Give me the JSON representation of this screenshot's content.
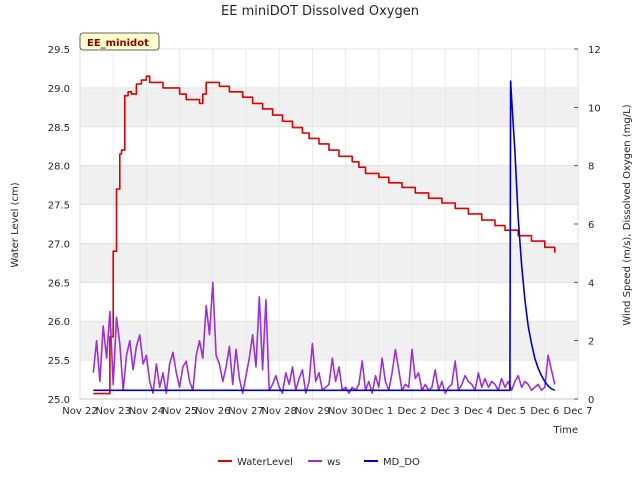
{
  "chart_data": {
    "type": "line",
    "title": "EE miniDOT Dissolved Oxygen",
    "badge": "EE_minidot",
    "xlabel": "Time",
    "ylabel_left": "Water Level (cm)",
    "ylabel_right": "Wind Speed (m/s), Dissolved Oxygen (mg/L)",
    "xlim": [
      0,
      15
    ],
    "ylim_left": [
      25.0,
      29.5
    ],
    "ylim_right": [
      0,
      12
    ],
    "x_ticks": [
      {
        "x": 0,
        "label": "Nov 22"
      },
      {
        "x": 1,
        "label": "Nov 23"
      },
      {
        "x": 2,
        "label": "Nov 24"
      },
      {
        "x": 3,
        "label": "Nov 25"
      },
      {
        "x": 4,
        "label": "Nov 26"
      },
      {
        "x": 5,
        "label": "Nov 27"
      },
      {
        "x": 6,
        "label": "Nov 28"
      },
      {
        "x": 7,
        "label": "Nov 29"
      },
      {
        "x": 8,
        "label": "Nov 30"
      },
      {
        "x": 9,
        "label": "Dec 1"
      },
      {
        "x": 10,
        "label": "Dec 2"
      },
      {
        "x": 11,
        "label": "Dec 3"
      },
      {
        "x": 12,
        "label": "Dec 4"
      },
      {
        "x": 13,
        "label": "Dec 5"
      },
      {
        "x": 14,
        "label": "Dec 6"
      },
      {
        "x": 15,
        "label": "Dec 7"
      }
    ],
    "y_ticks_left": [
      "25.0",
      "25.5",
      "26.0",
      "26.5",
      "27.0",
      "27.5",
      "28.0",
      "28.5",
      "29.0",
      "29.5"
    ],
    "y_ticks_right": [
      "0",
      "2",
      "4",
      "6",
      "8",
      "10",
      "12"
    ],
    "grid": true,
    "legend_position": "bottom-center",
    "series": [
      {
        "name": "WaterLevel",
        "axis": "left",
        "color": "#dd0000",
        "x": [
          0.4,
          0.8,
          0.9,
          1.0,
          1.1,
          1.2,
          1.25,
          1.35,
          1.45,
          1.55,
          1.7,
          1.85,
          2.0,
          2.1,
          2.5,
          2.8,
          3.0,
          3.2,
          3.6,
          3.7,
          3.8,
          4.2,
          4.5,
          4.9,
          5.2,
          5.5,
          5.8,
          6.1,
          6.4,
          6.7,
          6.9,
          7.2,
          7.5,
          7.8,
          8.2,
          8.4,
          8.6,
          9.0,
          9.3,
          9.7,
          10.1,
          10.5,
          10.9,
          11.3,
          11.7,
          12.1,
          12.5,
          12.8,
          13.2,
          13.6,
          14.0,
          14.3
        ],
        "y": [
          25.07,
          25.07,
          25.8,
          26.9,
          27.7,
          28.15,
          28.2,
          28.9,
          28.95,
          28.92,
          29.05,
          29.1,
          29.15,
          29.07,
          29.0,
          29.0,
          28.92,
          28.85,
          28.8,
          28.92,
          29.07,
          29.02,
          28.95,
          28.88,
          28.8,
          28.73,
          28.65,
          28.57,
          28.49,
          28.42,
          28.35,
          28.28,
          28.2,
          28.12,
          28.05,
          27.98,
          27.9,
          27.85,
          27.78,
          27.72,
          27.65,
          27.58,
          27.52,
          27.45,
          27.38,
          27.3,
          27.23,
          27.17,
          27.1,
          27.03,
          26.95,
          26.88
        ]
      },
      {
        "name": "ws",
        "axis": "right",
        "color": "#9b30d9",
        "x": [
          0.4,
          0.5,
          0.6,
          0.7,
          0.8,
          0.9,
          1.0,
          1.1,
          1.2,
          1.3,
          1.4,
          1.5,
          1.6,
          1.7,
          1.8,
          1.9,
          2.0,
          2.1,
          2.2,
          2.3,
          2.4,
          2.5,
          2.6,
          2.7,
          2.8,
          2.9,
          3.0,
          3.1,
          3.2,
          3.3,
          3.4,
          3.5,
          3.6,
          3.7,
          3.8,
          3.9,
          4.0,
          4.1,
          4.2,
          4.3,
          4.4,
          4.5,
          4.6,
          4.7,
          4.8,
          4.9,
          5.0,
          5.1,
          5.2,
          5.3,
          5.4,
          5.5,
          5.6,
          5.7,
          5.8,
          5.9,
          6.0,
          6.1,
          6.2,
          6.3,
          6.4,
          6.5,
          6.6,
          6.7,
          6.8,
          6.9,
          7.0,
          7.1,
          7.2,
          7.3,
          7.4,
          7.5,
          7.6,
          7.7,
          7.8,
          7.9,
          8.0,
          8.1,
          8.2,
          8.3,
          8.4,
          8.5,
          8.6,
          8.7,
          8.8,
          8.9,
          9.0,
          9.1,
          9.2,
          9.3,
          9.4,
          9.5,
          9.6,
          9.7,
          9.8,
          9.9,
          10.0,
          10.1,
          10.2,
          10.3,
          10.4,
          10.5,
          10.6,
          10.7,
          10.8,
          10.9,
          11.0,
          11.1,
          11.2,
          11.3,
          11.4,
          11.5,
          11.6,
          11.7,
          11.8,
          11.9,
          12.0,
          12.1,
          12.2,
          12.3,
          12.4,
          12.5,
          12.6,
          12.7,
          12.8,
          12.9,
          13.0,
          13.1,
          13.2,
          13.3,
          13.4,
          13.5,
          13.6,
          13.7,
          13.8,
          13.9,
          14.0,
          14.1,
          14.2,
          14.3
        ],
        "y": [
          0.9,
          2.0,
          0.6,
          2.5,
          1.4,
          3.0,
          0.5,
          2.8,
          1.9,
          0.3,
          1.5,
          2.0,
          1.0,
          1.8,
          2.2,
          1.2,
          1.5,
          0.6,
          0.2,
          1.2,
          0.4,
          0.9,
          0.2,
          1.2,
          1.6,
          0.9,
          0.4,
          1.1,
          1.3,
          0.6,
          0.3,
          1.5,
          2.0,
          1.4,
          3.2,
          2.2,
          4.0,
          1.5,
          1.2,
          0.6,
          1.1,
          1.8,
          0.5,
          1.7,
          0.7,
          0.2,
          0.8,
          1.4,
          2.2,
          1.1,
          3.5,
          1.0,
          3.4,
          0.3,
          0.5,
          0.8,
          0.4,
          0.2,
          0.9,
          0.5,
          1.1,
          0.3,
          0.7,
          1.0,
          0.2,
          0.6,
          1.9,
          0.6,
          0.9,
          0.3,
          0.4,
          0.5,
          1.4,
          0.6,
          1.1,
          0.3,
          0.4,
          0.2,
          0.4,
          0.3,
          0.5,
          1.3,
          0.3,
          0.6,
          0.2,
          0.8,
          0.4,
          1.4,
          0.6,
          0.3,
          0.9,
          1.7,
          1.0,
          0.3,
          0.5,
          0.4,
          1.7,
          0.7,
          0.9,
          0.3,
          0.5,
          0.3,
          0.4,
          1.0,
          0.3,
          0.6,
          0.2,
          0.4,
          0.5,
          1.3,
          0.3,
          0.5,
          0.8,
          0.6,
          0.5,
          0.3,
          0.9,
          0.4,
          0.7,
          0.4,
          0.6,
          0.5,
          0.3,
          0.7,
          0.4,
          0.6,
          0.3,
          0.6,
          0.8,
          0.4,
          0.6,
          0.5,
          0.3,
          0.4,
          0.5,
          0.3,
          0.4,
          1.5,
          1.0,
          0.5
        ]
      },
      {
        "name": "MD_DO",
        "axis": "right",
        "color": "#0000cc",
        "x": [
          0.4,
          12.95,
          12.97,
          13.0,
          13.1,
          13.2,
          13.3,
          13.4,
          13.5,
          13.6,
          13.7,
          13.8,
          13.9,
          14.0,
          14.1,
          14.2,
          14.3
        ],
        "y": [
          0.3,
          0.3,
          10.9,
          10.3,
          8.5,
          6.2,
          4.6,
          3.4,
          2.5,
          1.9,
          1.4,
          1.05,
          0.8,
          0.6,
          0.45,
          0.35,
          0.3
        ]
      }
    ]
  }
}
